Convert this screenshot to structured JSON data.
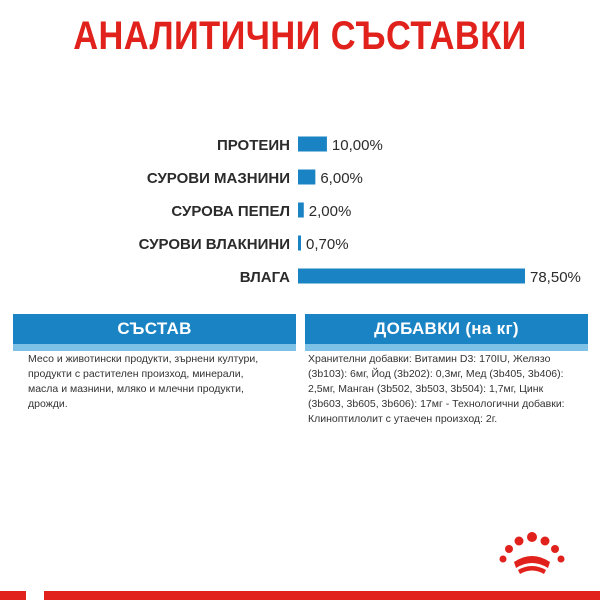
{
  "title": "АНАЛИТИЧНИ СЪСТАВКИ",
  "colors": {
    "title": "#e1211b",
    "bar": "#1a83c4",
    "label": "#2b2b2b",
    "panel_header": "#1a83c4",
    "panel_strip": "#7ec1e6",
    "brand_red": "#e1211b"
  },
  "chart_data": {
    "type": "bar",
    "orientation": "horizontal",
    "categories": [
      "ПРОТЕИН",
      "СУРОВИ МАЗНИНИ",
      "СУРОВА ПЕПЕЛ",
      "СУРОВИ ВЛАКНИНИ",
      "ВЛАГА"
    ],
    "values": [
      10.0,
      6.0,
      2.0,
      0.7,
      78.5
    ],
    "value_labels": [
      "10,00%",
      "6,00%",
      "2,00%",
      "0,70%",
      "78,50%"
    ],
    "unit": "%",
    "xlim": [
      0,
      78.5
    ]
  },
  "sections": {
    "composition": {
      "header": "СЪСТАВ",
      "text": "Месо и животински продукти, зърнени култури, продукти с растителен произход, минерали, масла и мазнини, мляко и млечни продукти, дрожди."
    },
    "additives": {
      "header": "ДОБАВКИ (на кг)",
      "text": "Хранителни добавки: Витамин D3: 170IU, Желязо (3b103): 6мг, Йод (3b202): 0,3мг, Мед (3b405, 3b406): 2,5мг, Манган (3b502, 3b503, 3b504): 1,7мг, Цинк (3b603, 3b605, 3b606): 17мг - Технологични добавки: Клиноптилолит с утаечен произход: 2г."
    }
  },
  "logo": {
    "icon": "royal-canin-crown-icon"
  }
}
